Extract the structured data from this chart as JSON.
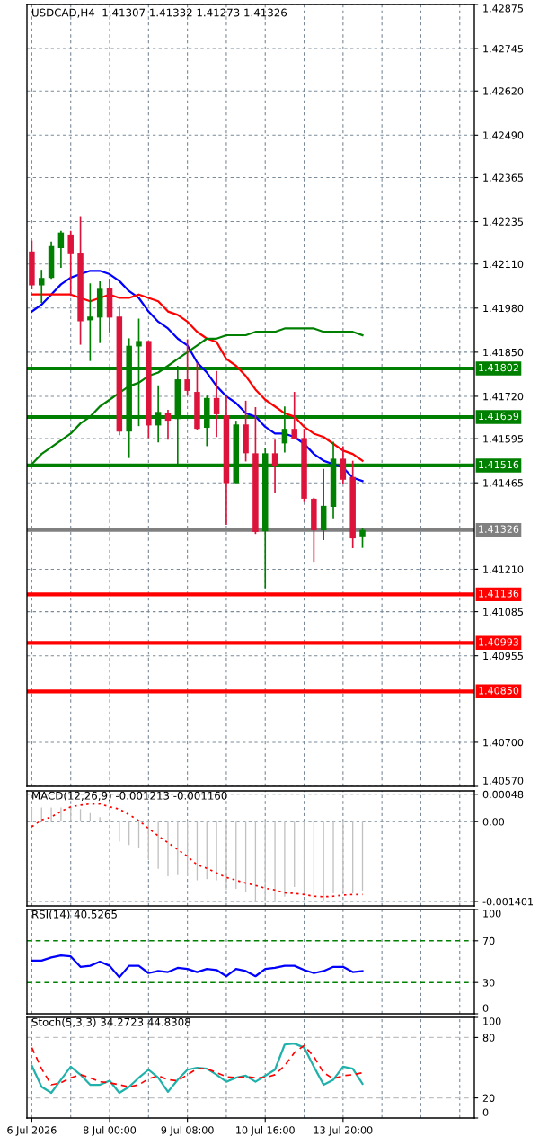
{
  "chart_data": [
    {
      "type": "candlestick",
      "title": "USDCAD,H4  1.41307 1.41332 1.41273 1.41326",
      "categories": [
        null,
        null,
        null,
        null,
        null,
        null,
        null,
        null,
        null,
        null,
        null,
        null,
        null,
        null,
        null,
        null,
        null,
        null,
        null,
        null,
        null,
        null,
        null,
        null,
        null,
        null,
        null,
        null,
        null,
        null,
        null,
        null,
        null,
        null,
        null,
        null,
        null,
        null,
        null,
        null,
        null,
        null,
        null,
        null,
        null,
        null
      ],
      "ohlc": [
        [
          1.42147,
          1.42179,
          1.42035,
          1.42047
        ],
        [
          1.42047,
          1.42093,
          1.41995,
          1.42069
        ],
        [
          1.42069,
          1.42176,
          1.42066,
          1.42163
        ],
        [
          1.42157,
          1.42208,
          1.42099,
          1.42203
        ],
        [
          1.42197,
          1.42208,
          1.42016,
          1.42139
        ],
        [
          1.42141,
          1.42251,
          1.41872,
          1.41941
        ],
        [
          1.41944,
          1.42053,
          1.41824,
          1.41955
        ],
        [
          1.41952,
          1.42059,
          1.41877,
          1.42037
        ],
        [
          1.4204,
          1.42067,
          1.41907,
          1.41952
        ],
        [
          1.41955,
          1.41984,
          1.41605,
          1.41616
        ],
        [
          1.41616,
          1.41891,
          1.41538,
          1.41869
        ],
        [
          1.41867,
          1.41949,
          1.41632,
          1.41883
        ],
        [
          1.41883,
          1.41883,
          1.41597,
          1.41634
        ],
        [
          1.41634,
          1.41752,
          1.41584,
          1.41674
        ],
        [
          1.41672,
          1.4168,
          1.41592,
          1.41648
        ],
        [
          1.41653,
          1.4181,
          1.41514,
          1.4177
        ],
        [
          1.4177,
          1.41888,
          1.41722,
          1.41736
        ],
        [
          1.41733,
          1.41819,
          1.41621,
          1.41624
        ],
        [
          1.41627,
          1.41722,
          1.41573,
          1.41715
        ],
        [
          1.41715,
          1.41795,
          1.416,
          1.41667
        ],
        [
          1.41664,
          1.4172,
          1.41341,
          1.41464
        ],
        [
          1.41464,
          1.41648,
          1.41464,
          1.41637
        ],
        [
          1.41637,
          1.41707,
          1.41528,
          1.41552
        ],
        [
          1.41552,
          1.41688,
          1.41314,
          1.4132
        ],
        [
          1.41322,
          1.41568,
          1.41154,
          1.41552
        ],
        [
          1.41552,
          1.41592,
          1.41434,
          1.41514
        ],
        [
          1.41581,
          1.4169,
          1.41554,
          1.41624
        ],
        [
          1.41624,
          1.41733,
          1.41594,
          1.41594
        ],
        [
          1.41597,
          1.41624,
          1.41408,
          1.41418
        ],
        [
          1.41418,
          1.41421,
          1.41232,
          1.41325
        ],
        [
          1.41325,
          1.41506,
          1.41296,
          1.41397
        ],
        [
          1.41394,
          1.41586,
          1.4136,
          1.41536
        ],
        [
          1.41536,
          1.41573,
          1.41461,
          1.41474
        ],
        [
          1.41482,
          1.4153,
          1.41272,
          1.41301
        ],
        [
          1.41307,
          1.41332,
          1.41273,
          1.41326
        ],
        null,
        null,
        null,
        null,
        null,
        null,
        null,
        null,
        null,
        null,
        null
      ],
      "series": [
        {
          "type": "line",
          "color": "#0000ff",
          "values": [
            1.4197,
            1.4199,
            1.4202,
            1.4205,
            1.4207,
            1.4208,
            1.4209,
            1.4209,
            1.4208,
            1.4206,
            1.4203,
            1.4201,
            1.4197,
            1.4194,
            1.4192,
            1.4189,
            1.4187,
            1.4182,
            1.4179,
            1.4175,
            1.4172,
            1.417,
            1.4167,
            1.4166,
            1.4163,
            1.4161,
            1.4161,
            1.416,
            1.4158,
            1.4155,
            1.4153,
            1.4152,
            1.4151,
            1.4148,
            1.4147,
            null,
            null,
            null,
            null,
            null,
            null,
            null,
            null,
            null,
            null,
            null
          ]
        },
        {
          "type": "line",
          "color": "#ff0000",
          "values": [
            1.4202,
            1.4202,
            1.4202,
            1.4202,
            1.4202,
            1.4201,
            1.42,
            1.4201,
            1.4202,
            1.4201,
            1.4201,
            1.4202,
            1.4201,
            1.42,
            1.4197,
            1.4196,
            1.4194,
            1.4191,
            1.4189,
            1.4188,
            1.4183,
            1.4181,
            1.4178,
            1.4174,
            1.4171,
            1.4169,
            1.4167,
            1.4166,
            1.4163,
            1.4161,
            1.416,
            1.4158,
            1.4156,
            1.4155,
            1.4153,
            null,
            null,
            null,
            null,
            null,
            null,
            null,
            null,
            null,
            null,
            null
          ]
        },
        {
          "type": "line",
          "color": "#008000",
          "values": [
            1.4152,
            1.4155,
            1.4157,
            1.4159,
            1.4161,
            1.4164,
            1.4166,
            1.4169,
            1.4171,
            1.4173,
            1.4175,
            1.4176,
            1.4178,
            1.4179,
            1.4181,
            1.4183,
            1.4185,
            1.4187,
            1.4189,
            1.4189,
            1.419,
            1.419,
            1.419,
            1.4191,
            1.4191,
            1.4191,
            1.4192,
            1.4192,
            1.4192,
            1.4192,
            1.4191,
            1.4191,
            1.4191,
            1.4191,
            1.419,
            null,
            null,
            null,
            null,
            null,
            null,
            null,
            null,
            null,
            null,
            null
          ]
        }
      ],
      "ref_lines": [
        {
          "axis": "y",
          "value": 1.41802,
          "label": "1.41802",
          "color": "#008000"
        },
        {
          "axis": "y",
          "value": 1.41659,
          "label": "1.41659",
          "color": "#008000"
        },
        {
          "axis": "y",
          "value": 1.41516,
          "label": "1.41516",
          "color": "#008000"
        },
        {
          "axis": "y",
          "value": 1.41326,
          "label": "1.41326",
          "color": "#808080"
        },
        {
          "axis": "y",
          "value": 1.41136,
          "label": "1.41136",
          "color": "#ff0000"
        },
        {
          "axis": "y",
          "value": 1.40993,
          "label": "1.40993",
          "color": "#ff0000"
        },
        {
          "axis": "y",
          "value": 1.4085,
          "label": "1.40850",
          "color": "#ff0000"
        }
      ],
      "ylim": [
        1.4057,
        1.42875
      ],
      "yticks": [
        {
          "value": 1.42875,
          "label": "1.42875"
        },
        {
          "value": 1.42745,
          "label": "1.42745"
        },
        {
          "value": 1.4262,
          "label": "1.42620"
        },
        {
          "value": 1.4249,
          "label": "1.42490"
        },
        {
          "value": 1.42365,
          "label": "1.42365"
        },
        {
          "value": 1.42235,
          "label": "1.42235"
        },
        {
          "value": 1.4211,
          "label": "1.42110"
        },
        {
          "value": 1.4198,
          "label": "1.41980"
        },
        {
          "value": 1.4185,
          "label": "1.41850"
        },
        {
          "value": 1.4172,
          "label": "1.41720"
        },
        {
          "value": 1.41595,
          "label": "1.41595"
        },
        {
          "value": 1.41465,
          "label": "1.41465"
        },
        {
          "value": 1.4121,
          "label": "1.41210"
        },
        {
          "value": 1.41085,
          "label": "1.41085"
        },
        {
          "value": 1.40955,
          "label": "1.40955"
        },
        {
          "value": 1.407,
          "label": "1.40700"
        },
        {
          "value": 1.4057,
          "label": "1.40570"
        }
      ],
      "grid": true,
      "tick_labels": "y"
    },
    {
      "type": "bar",
      "title": "MACD(12,26,9) -0.001213 -0.001160",
      "categories": [
        null,
        null,
        null,
        null,
        null,
        null,
        null,
        null,
        null,
        null,
        null,
        null,
        null,
        null,
        null,
        null,
        null,
        null,
        null,
        null,
        null,
        null,
        null,
        null,
        null,
        null,
        null,
        null,
        null,
        null,
        null,
        null,
        null,
        null,
        null,
        null,
        null,
        null,
        null,
        null,
        null,
        null,
        null,
        null,
        null,
        null
      ],
      "series": [
        {
          "type": "bar",
          "color": "#c0c0c0",
          "values": [
            0.00025,
            0.00025,
            0.00025,
            0.00025,
            0.00028,
            0.00022,
            0.00015,
            8e-05,
            0.0,
            -0.00035,
            -0.00041,
            -0.00046,
            -0.00068,
            -0.00083,
            -0.00096,
            -0.00094,
            -0.00096,
            -0.00103,
            -0.00101,
            -0.00103,
            -0.0012,
            -0.00118,
            -0.00123,
            -0.0014,
            -0.00138,
            -0.00138,
            -0.00132,
            -0.00115,
            -0.00127,
            -0.00135,
            -0.00138,
            -0.00126,
            -0.00123,
            -0.00126,
            -0.00121,
            null,
            null,
            null,
            null,
            null,
            null,
            null,
            null,
            null,
            null,
            null
          ]
        },
        {
          "type": "line",
          "color": "#ff0000",
          "line_style": "dotted",
          "values": [
            -9e-05,
            3e-05,
            8e-05,
            0.00018,
            0.00026,
            0.00029,
            0.00031,
            0.00031,
            0.00026,
            0.00022,
            0.00012,
            2e-05,
            -0.00012,
            -0.00025,
            -0.00037,
            -0.00049,
            -0.00061,
            -0.00076,
            -0.00082,
            -0.0009,
            -0.00098,
            -0.00103,
            -0.00108,
            -0.00112,
            -0.00117,
            -0.0012,
            -0.00125,
            -0.00126,
            -0.00128,
            -0.00131,
            -0.00132,
            -0.00131,
            -0.00129,
            -0.00128,
            -0.00128,
            null,
            null,
            null,
            null,
            null,
            null,
            null,
            null,
            null,
            null,
            null
          ]
        }
      ],
      "ylim": [
        -0.00148,
        0.00054
      ],
      "yticks": [
        {
          "value": 0.00048,
          "label": "0.00048"
        },
        {
          "value": 0,
          "label": "0.00"
        },
        {
          "value": -0.001401,
          "label": "-0.001401"
        }
      ],
      "grid": true,
      "tick_labels": "y"
    },
    {
      "type": "line",
      "title": "RSI(14) 40.5265",
      "categories": [
        null,
        null,
        null,
        null,
        null,
        null,
        null,
        null,
        null,
        null,
        null,
        null,
        null,
        null,
        null,
        null,
        null,
        null,
        null,
        null,
        null,
        null,
        null,
        null,
        null,
        null,
        null,
        null,
        null,
        null,
        null,
        null,
        null,
        null,
        null,
        null,
        null,
        null,
        null,
        null,
        null,
        null,
        null,
        null,
        null,
        null
      ],
      "series": [
        {
          "color": "#0000ff",
          "values": [
            51,
            51,
            54,
            56,
            55,
            45,
            46,
            50,
            46,
            35,
            46,
            46,
            39,
            41,
            40,
            44,
            43,
            40,
            43,
            42,
            36,
            43,
            41,
            36,
            43,
            44,
            46,
            46,
            42,
            39,
            41,
            45,
            45,
            40,
            41,
            null,
            null,
            null,
            null,
            null,
            null,
            null,
            null,
            null,
            null,
            null
          ]
        }
      ],
      "ref_lines": [
        {
          "axis": "y",
          "value": 70,
          "color": "#008000",
          "line_style": "dashed"
        },
        {
          "axis": "y",
          "value": 30,
          "color": "#008000",
          "line_style": "dashed"
        }
      ],
      "ylim": [
        0,
        100
      ],
      "yticks": [
        100,
        70,
        30,
        0
      ],
      "grid": "x",
      "tick_labels": "y"
    },
    {
      "type": "line",
      "title": "Stoch(5,3,3) 34.2723 44.8308",
      "categories": [
        "6 Jul 2026",
        null,
        null,
        null,
        null,
        null,
        null,
        null,
        "8 Jul 00:00",
        null,
        null,
        null,
        null,
        null,
        null,
        null,
        "9 Jul 08:00",
        null,
        null,
        null,
        null,
        null,
        null,
        null,
        "10 Jul 16:00",
        null,
        null,
        null,
        null,
        null,
        null,
        null,
        "13 Jul 20:00",
        null,
        null,
        null,
        null,
        null,
        null,
        null,
        null,
        null,
        null,
        null,
        null,
        null
      ],
      "series": [
        {
          "color": "#20b2aa",
          "values": [
            52,
            31,
            25,
            38,
            51,
            43,
            33,
            33,
            37,
            25,
            31,
            40,
            48,
            40,
            26,
            38,
            48,
            50,
            49,
            43,
            36,
            40,
            42,
            36,
            42,
            48,
            73,
            74,
            70,
            51,
            33,
            38,
            51,
            49,
            34,
            null,
            null,
            null,
            null,
            null,
            null,
            null,
            null,
            null,
            null,
            null
          ]
        },
        {
          "color": "#ff0000",
          "line_style": "dashed",
          "values": [
            70,
            49,
            33,
            35,
            40,
            43,
            40,
            36,
            35,
            33,
            31,
            33,
            39,
            42,
            38,
            37,
            43,
            49,
            49,
            45,
            41,
            40,
            41,
            40,
            40,
            43,
            52,
            65,
            72,
            61,
            45,
            39,
            42,
            43,
            45,
            null,
            null,
            null,
            null,
            null,
            null,
            null,
            null,
            null,
            null,
            null
          ]
        }
      ],
      "ref_lines": [
        {
          "axis": "y",
          "value": 80,
          "color": "#c0c0c0",
          "line_style": "dashed"
        },
        {
          "axis": "y",
          "value": 20,
          "color": "#c0c0c0",
          "line_style": "dashed"
        }
      ],
      "ylim": [
        0,
        100
      ],
      "yticks": [
        100,
        80,
        20,
        0
      ],
      "grid": "x"
    }
  ]
}
